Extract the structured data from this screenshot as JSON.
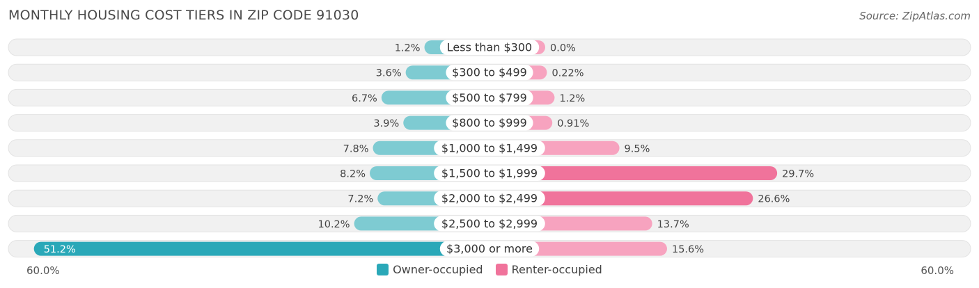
{
  "title": "MONTHLY HOUSING COST TIERS IN ZIP CODE 91030",
  "source": "Source: ZipAtlas.com",
  "colors": {
    "owner": "#7ecbd2",
    "owner_strong": "#2aa8b8",
    "renter": "#f7a3bf",
    "renter_strong": "#f0739b",
    "row_bg": "#f1f1f1"
  },
  "legend": {
    "owner_label": "Owner-occupied",
    "renter_label": "Renter-occupied"
  },
  "axis": {
    "left_label": "60.0%",
    "right_label": "60.0%"
  },
  "chart_data": {
    "type": "bar",
    "orientation": "diverging-horizontal",
    "title": "MONTHLY HOUSING COST TIERS IN ZIP CODE 91030",
    "categories": [
      "Less than $300",
      "$300 to $499",
      "$500 to $799",
      "$800 to $999",
      "$1,000 to $1,499",
      "$1,500 to $1,999",
      "$2,000 to $2,499",
      "$2,500 to $2,999",
      "$3,000 or more"
    ],
    "series": [
      {
        "name": "Owner-occupied",
        "values": [
          1.2,
          3.6,
          6.7,
          3.9,
          7.8,
          8.2,
          7.2,
          10.2,
          51.2
        ],
        "labels": [
          "1.2%",
          "3.6%",
          "6.7%",
          "3.9%",
          "7.8%",
          "8.2%",
          "7.2%",
          "10.2%",
          "51.2%"
        ]
      },
      {
        "name": "Renter-occupied",
        "values": [
          0.0,
          0.22,
          1.2,
          0.91,
          9.5,
          29.7,
          26.6,
          13.7,
          15.6
        ],
        "labels": [
          "0.0%",
          "0.22%",
          "1.2%",
          "0.91%",
          "9.5%",
          "29.7%",
          "26.6%",
          "13.7%",
          "15.6%"
        ]
      }
    ],
    "xlim": [
      -60,
      60
    ],
    "legend_position": "bottom-center"
  }
}
